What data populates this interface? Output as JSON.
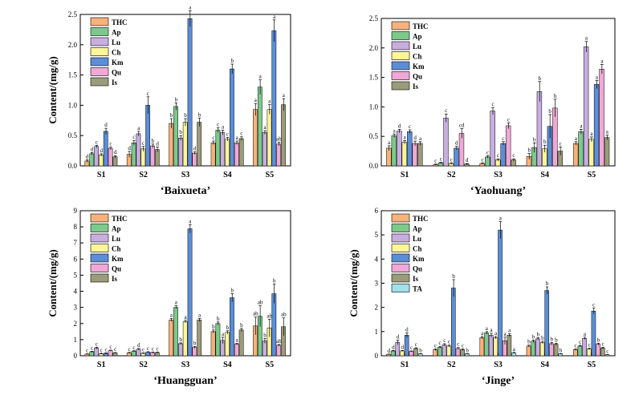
{
  "legend_labels": [
    "THC",
    "Ap",
    "Lu",
    "Ch",
    "Km",
    "Qu",
    "Is",
    "TA"
  ],
  "colors": {
    "THC": "#f7b27a",
    "Ap": "#7cc98c",
    "Lu": "#c8aee0",
    "Ch": "#fdf59a",
    "Km": "#5b8ed6",
    "Qu": "#f0a8d6",
    "Is": "#9c9c7c",
    "TA": "#9fe0ec"
  },
  "chart_data": [
    {
      "type": "bar",
      "title": "‘Baixueta’",
      "ylabel": "Content/(mg/g)",
      "ylim": [
        0,
        2.5
      ],
      "yticks": [
        "0.0",
        "0.5",
        "1.0",
        "1.5",
        "2.0",
        "2.5"
      ],
      "categories": [
        "S1",
        "S2",
        "S3",
        "S4",
        "S5"
      ],
      "series": [
        {
          "name": "THC",
          "values": [
            0.08,
            0.19,
            0.7,
            0.38,
            0.93
          ],
          "errors": [
            0.02,
            0.05,
            0.08,
            0.03,
            0.1
          ],
          "letters": [
            "d",
            "d",
            "b",
            "c",
            "a"
          ]
        },
        {
          "name": "Ap",
          "values": [
            0.2,
            0.38,
            0.98,
            0.59,
            1.3
          ],
          "errors": [
            0.02,
            0.04,
            0.06,
            0.04,
            0.12
          ],
          "letters": [
            "d",
            "c",
            "b",
            "c",
            "a"
          ]
        },
        {
          "name": "Lu",
          "values": [
            0.32,
            0.53,
            0.46,
            0.55,
            0.55
          ],
          "errors": [
            0.02,
            0.04,
            0.04,
            0.04,
            0.03
          ],
          "letters": [
            "c",
            "a",
            "b",
            "a",
            "a"
          ]
        },
        {
          "name": "Ch",
          "values": [
            0.18,
            0.28,
            0.72,
            0.44,
            0.93
          ],
          "errors": [
            0.02,
            0.04,
            0.06,
            0.03,
            0.08
          ],
          "letters": [
            "d",
            "c",
            "b",
            "c",
            "a"
          ]
        },
        {
          "name": "Km",
          "values": [
            0.57,
            1.0,
            2.43,
            1.6,
            2.23
          ],
          "errors": [
            0.05,
            0.14,
            0.13,
            0.08,
            0.18
          ],
          "letters": [
            "d",
            "c",
            "a",
            "b",
            "a"
          ]
        },
        {
          "name": "Qu",
          "values": [
            0.29,
            0.33,
            0.21,
            0.38,
            0.36
          ],
          "errors": [
            0.02,
            0.03,
            0.02,
            0.03,
            0.03
          ],
          "letters": [
            "c",
            "b",
            "d",
            "a",
            "ab"
          ]
        },
        {
          "name": "Is",
          "values": [
            0.15,
            0.27,
            0.72,
            0.45,
            1.01
          ],
          "errors": [
            0.02,
            0.04,
            0.07,
            0.03,
            0.1
          ],
          "letters": [
            "d",
            "d",
            "b",
            "c",
            "a"
          ]
        }
      ]
    },
    {
      "type": "bar",
      "title": "‘Yaohuang’",
      "ylabel": "",
      "ylim": [
        0,
        2.5
      ],
      "yticks": [
        "0.0",
        "0.5",
        "1.0",
        "1.5",
        "2.0",
        "2.5"
      ],
      "categories": [
        "S1",
        "S2",
        "S3",
        "S4",
        "S5"
      ],
      "series": [
        {
          "name": "THC",
          "values": [
            0.3,
            0.02,
            0.04,
            0.16,
            0.38
          ],
          "errors": [
            0.04,
            0.01,
            0.01,
            0.05,
            0.03
          ],
          "letters": [
            "a",
            "c",
            "c",
            "b",
            "a"
          ]
        },
        {
          "name": "Ap",
          "values": [
            0.51,
            0.05,
            0.15,
            0.31,
            0.58
          ],
          "errors": [
            0.03,
            0.01,
            0.02,
            0.08,
            0.04
          ],
          "letters": [
            "a",
            "c",
            "c",
            "b",
            "a"
          ]
        },
        {
          "name": "Lu",
          "values": [
            0.59,
            0.81,
            0.93,
            1.26,
            2.02
          ],
          "errors": [
            0.03,
            0.07,
            0.06,
            0.17,
            0.09
          ],
          "letters": [
            "d",
            "c",
            "c",
            "b",
            "a"
          ]
        },
        {
          "name": "Ch",
          "values": [
            0.4,
            0.04,
            0.1,
            0.29,
            0.45
          ],
          "errors": [
            0.03,
            0.01,
            0.02,
            0.06,
            0.04
          ],
          "letters": [
            "a",
            "c",
            "c",
            "b",
            "a"
          ]
        },
        {
          "name": "Km",
          "values": [
            0.58,
            0.3,
            0.38,
            0.67,
            1.38
          ],
          "errors": [
            0.03,
            0.03,
            0.03,
            0.2,
            0.07
          ],
          "letters": [
            "c",
            "d",
            "c",
            "b",
            "a"
          ]
        },
        {
          "name": "Qu",
          "values": [
            0.38,
            0.55,
            0.68,
            0.98,
            1.64
          ],
          "errors": [
            0.04,
            0.08,
            0.05,
            0.15,
            0.08
          ],
          "letters": [
            "d",
            "cd",
            "c",
            "b",
            "a"
          ]
        },
        {
          "name": "Is",
          "values": [
            0.38,
            0.03,
            0.1,
            0.25,
            0.48
          ],
          "errors": [
            0.03,
            0.01,
            0.02,
            0.07,
            0.04
          ],
          "letters": [
            "a",
            "d",
            "c",
            "c",
            "a"
          ]
        }
      ]
    },
    {
      "type": "bar",
      "title": "‘Huangguan’",
      "ylabel": "Content/(mg/g)",
      "ylim": [
        0,
        9
      ],
      "yticks": [
        "0",
        "1",
        "2",
        "3",
        "4",
        "5",
        "6",
        "7",
        "8",
        "9"
      ],
      "categories": [
        "S1",
        "S2",
        "S3",
        "S4",
        "S5"
      ],
      "series": [
        {
          "name": "THC",
          "values": [
            0.1,
            0.18,
            2.22,
            1.5,
            1.85
          ],
          "errors": [
            0.02,
            0.03,
            0.1,
            0.1,
            0.55
          ],
          "letters": [
            "c",
            "c",
            "a",
            "b",
            "ab"
          ]
        },
        {
          "name": "Ap",
          "values": [
            0.25,
            0.28,
            3.0,
            2.0,
            2.45
          ],
          "errors": [
            0.03,
            0.03,
            0.1,
            0.1,
            0.65
          ],
          "letters": [
            "c",
            "c",
            "a",
            "b",
            "ab"
          ]
        },
        {
          "name": "Lu",
          "values": [
            0.48,
            0.4,
            0.75,
            0.95,
            0.92
          ],
          "errors": [
            0.05,
            0.05,
            0.05,
            0.2,
            0.15
          ],
          "letters": [
            "c",
            "d",
            "b",
            "a",
            "b"
          ]
        },
        {
          "name": "Ch",
          "values": [
            0.12,
            0.15,
            2.12,
            1.45,
            1.72
          ],
          "errors": [
            0.02,
            0.03,
            0.08,
            0.1,
            0.55
          ],
          "letters": [
            "c",
            "c",
            "a",
            "b",
            "ab"
          ]
        },
        {
          "name": "Km",
          "values": [
            0.15,
            0.22,
            7.88,
            3.6,
            3.85
          ],
          "errors": [
            0.03,
            0.03,
            0.25,
            0.25,
            0.6
          ],
          "letters": [
            "c",
            "c",
            "a",
            "b",
            "b"
          ]
        },
        {
          "name": "Qu",
          "values": [
            0.32,
            0.2,
            0.52,
            0.72,
            0.65
          ],
          "errors": [
            0.03,
            0.03,
            0.05,
            0.05,
            0.05
          ],
          "letters": [
            "c",
            "c",
            "b",
            "a",
            "ab"
          ]
        },
        {
          "name": "Is",
          "values": [
            0.18,
            0.2,
            2.22,
            1.6,
            1.8
          ],
          "errors": [
            0.02,
            0.03,
            0.1,
            0.1,
            0.55
          ],
          "letters": [
            "c",
            "c",
            "a",
            "b",
            "ab"
          ]
        }
      ]
    },
    {
      "type": "bar",
      "title": "‘Jinge’",
      "ylabel": "Content/(mg/g)",
      "ylim": [
        0,
        6
      ],
      "yticks": [
        "0",
        "1",
        "2",
        "3",
        "4",
        "5",
        "6"
      ],
      "categories": [
        "S1",
        "S2",
        "S3",
        "S4",
        "S5"
      ],
      "series": [
        {
          "name": "THC",
          "values": [
            0.06,
            0.25,
            0.75,
            0.4,
            0.25
          ],
          "errors": [
            0.01,
            0.04,
            0.05,
            0.04,
            0.03
          ],
          "letters": [
            "d",
            "c",
            "a",
            "b",
            "c"
          ]
        },
        {
          "name": "Ap",
          "values": [
            0.2,
            0.35,
            0.95,
            0.6,
            0.4
          ],
          "errors": [
            0.02,
            0.04,
            0.05,
            0.05,
            0.03
          ],
          "letters": [
            "d",
            "c",
            "a",
            "b",
            "c"
          ]
        },
        {
          "name": "Lu",
          "values": [
            0.55,
            0.45,
            0.85,
            0.7,
            0.72
          ],
          "errors": [
            0.1,
            0.05,
            0.08,
            0.05,
            0.05
          ],
          "letters": [
            "d",
            "c",
            "a",
            "b",
            "a"
          ]
        },
        {
          "name": "Ch",
          "values": [
            0.2,
            0.4,
            0.75,
            0.55,
            0.28
          ],
          "errors": [
            0.02,
            0.04,
            0.05,
            0.05,
            0.03
          ],
          "letters": [
            "d",
            "c",
            "a",
            "b",
            "c"
          ]
        },
        {
          "name": "Km",
          "values": [
            0.85,
            2.8,
            5.2,
            2.7,
            1.85
          ],
          "errors": [
            0.1,
            0.35,
            0.35,
            0.15,
            0.12
          ],
          "letters": [
            "d",
            "b",
            "a",
            "b",
            "c"
          ]
        },
        {
          "name": "Qu",
          "values": [
            0.18,
            0.3,
            0.62,
            0.5,
            0.48
          ],
          "errors": [
            0.02,
            0.04,
            0.15,
            0.05,
            0.04
          ],
          "letters": [
            "c",
            "c",
            "a",
            "b",
            "b"
          ]
        },
        {
          "name": "Is",
          "values": [
            0.3,
            0.25,
            0.85,
            0.48,
            0.32
          ],
          "errors": [
            0.03,
            0.03,
            0.06,
            0.04,
            0.03
          ],
          "letters": [
            "c",
            "c",
            "a",
            "b",
            "c"
          ]
        },
        {
          "name": "TA",
          "values": [
            0.08,
            0.08,
            0.12,
            0.08,
            0.04
          ],
          "errors": [
            0.01,
            0.01,
            0.02,
            0.01,
            0.01
          ],
          "letters": [
            "b",
            "b",
            "a",
            "b",
            "c"
          ]
        }
      ]
    }
  ]
}
